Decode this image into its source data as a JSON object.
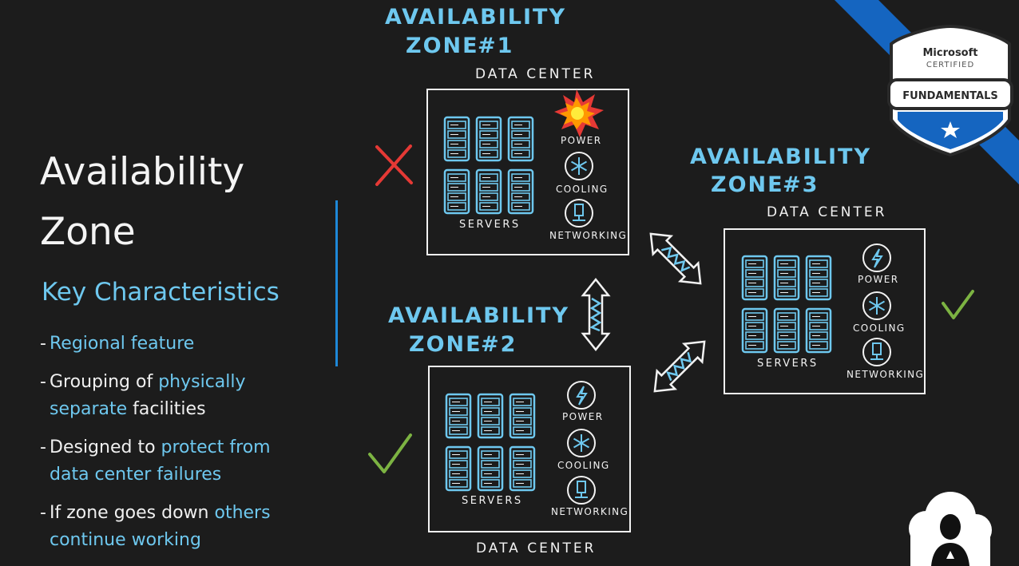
{
  "title": {
    "line1": "Availability",
    "line2": "Zone"
  },
  "subtitle": "Key Characteristics",
  "bullets": [
    {
      "dash": "-",
      "text_before": "",
      "highlight": "Regional feature",
      "text_after": ""
    },
    {
      "dash": "-",
      "text_before": "Grouping of ",
      "highlight": "physically separate",
      "text_after": " facilities"
    },
    {
      "dash": "-",
      "text_before": "Designed to ",
      "highlight": "protect from data center failures",
      "text_after": ""
    },
    {
      "dash": "-",
      "text_before": "If zone goes down ",
      "highlight": "others continue working",
      "text_after": ""
    }
  ],
  "zones": [
    {
      "title1": "AVAILABILITY",
      "title2": "ZONE",
      "number": "#1",
      "datacenter": "DATA CENTER",
      "servers": "SERVERS",
      "power": "POWER",
      "cooling": "COOLING",
      "networking": "NETWORKING",
      "status": "failed"
    },
    {
      "title1": "AVAILABILITY",
      "title2": "ZONE",
      "number": "#2",
      "datacenter": "DATA CENTER",
      "servers": "SERVERS",
      "power": "POWER",
      "cooling": "COOLING",
      "networking": "NETWORKING",
      "status": "ok"
    },
    {
      "title1": "AVAILABILITY",
      "title2": "ZONE",
      "number": "#3",
      "datacenter": "DATA CENTER",
      "servers": "SERVERS",
      "power": "POWER",
      "cooling": "COOLING",
      "networking": "NETWORKING",
      "status": "ok"
    }
  ],
  "badge": {
    "line1": "Microsoft",
    "line2": "CERTIFIED",
    "line3": "FUNDAMENTALS"
  },
  "colors": {
    "accent": "#6ec8ef",
    "divider": "#1e88d8",
    "check": "#7cb342",
    "cross": "#e53935",
    "ribbon": "#1565c0"
  },
  "icons": [
    "x-mark-icon",
    "check-mark-icon",
    "explosion-icon",
    "lightning-icon",
    "snowflake-icon",
    "network-icon",
    "server-rack-icon",
    "double-arrow-icon",
    "instructor-avatar-icon",
    "star-icon"
  ]
}
